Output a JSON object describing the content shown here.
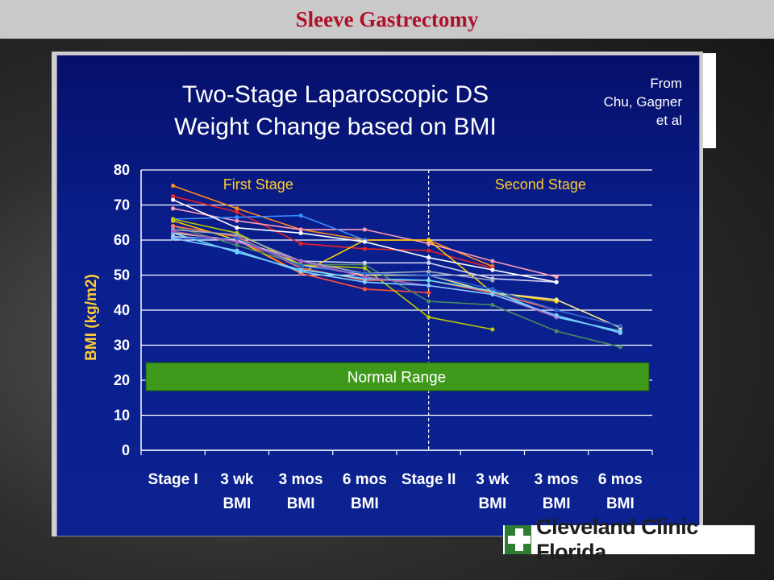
{
  "header": {
    "title": "Sleeve Gastrectomy"
  },
  "logo": {
    "text": "Cleveland Clinic Florida"
  },
  "chart_data": {
    "type": "line",
    "title_line1": "Two-Stage Laparoscopic DS",
    "title_line2": "Weight Change based on BMI",
    "source_lines": [
      "From",
      "Chu, Gagner",
      "et al"
    ],
    "ylabel": "BMI (kg/m2)",
    "ylim": [
      0,
      80
    ],
    "yticks": [
      0,
      10,
      20,
      30,
      40,
      50,
      60,
      70,
      80
    ],
    "categories": [
      [
        "Stage I",
        ""
      ],
      [
        "3 wk",
        "BMI"
      ],
      [
        "3 mos",
        "BMI"
      ],
      [
        "6 mos",
        "BMI"
      ],
      [
        "Stage II",
        ""
      ],
      [
        "3 wk",
        "BMI"
      ],
      [
        "3 mos",
        "BMI"
      ],
      [
        "6 mos",
        "BMI"
      ]
    ],
    "phase_labels": [
      "First Stage",
      "Second Stage"
    ],
    "band": {
      "label": "Normal Range",
      "from": 17,
      "to": 25,
      "color": "#3f9a1c"
    },
    "grid": true,
    "legend": "none",
    "series": [
      {
        "color": "#ff8a1e",
        "values": [
          75.5,
          69,
          63,
          60,
          60,
          52.5,
          null,
          null
        ]
      },
      {
        "color": "#ee2020",
        "values": [
          72.5,
          68,
          59,
          57.5,
          57,
          52,
          null,
          null
        ]
      },
      {
        "color": "#ff9ab4",
        "values": [
          69,
          65.5,
          63,
          63,
          59,
          54,
          49.5,
          null
        ]
      },
      {
        "color": "#ffcc00",
        "values": [
          65.5,
          60,
          50.5,
          60,
          60,
          45,
          42.5,
          null
        ]
      },
      {
        "color": "#3a8cff",
        "values": [
          66,
          66.5,
          67,
          60,
          null,
          null,
          null,
          null
        ]
      },
      {
        "color": "#ff5030",
        "values": [
          60.5,
          60.5,
          50.5,
          46,
          45,
          null,
          null,
          null
        ]
      },
      {
        "color": "#b8c800",
        "values": [
          66,
          62,
          53,
          52,
          38,
          34.5,
          null,
          null
        ]
      },
      {
        "color": "#ffe98a",
        "values": [
          62,
          60,
          53,
          50,
          50,
          45,
          43,
          35
        ]
      },
      {
        "color": "#4a8a64",
        "values": [
          64,
          58.5,
          53,
          53,
          42.5,
          41.5,
          34,
          29.5
        ]
      },
      {
        "color": "#ff7a5a",
        "values": [
          64,
          61,
          52,
          48.5,
          48.5,
          45,
          40,
          35.5
        ]
      },
      {
        "color": "#66ddff",
        "values": [
          62,
          56.5,
          51.5,
          49,
          48.5,
          45.5,
          38,
          34
        ]
      },
      {
        "color": "#d0d0f0",
        "values": [
          61,
          60,
          54,
          53.5,
          53.5,
          49,
          48,
          null
        ]
      },
      {
        "color": "#a0a8c0",
        "values": [
          63,
          61.5,
          54,
          50.5,
          51,
          48.5,
          null,
          null
        ]
      },
      {
        "color": "#2a64d8",
        "values": [
          60.5,
          60.5,
          52.5,
          50.5,
          50,
          46,
          40,
          35.5
        ]
      },
      {
        "color": "#b060c0",
        "values": [
          62.5,
          59.5,
          54,
          49.5,
          47,
          44.5,
          38,
          null
        ]
      },
      {
        "color": "#ffffff",
        "values": [
          71.5,
          63.5,
          62,
          59.5,
          55,
          51.5,
          48,
          null
        ]
      },
      {
        "color": "#80c8ff",
        "values": [
          60.5,
          57,
          51,
          48,
          47,
          44.5,
          38.5,
          33.5
        ]
      }
    ]
  }
}
